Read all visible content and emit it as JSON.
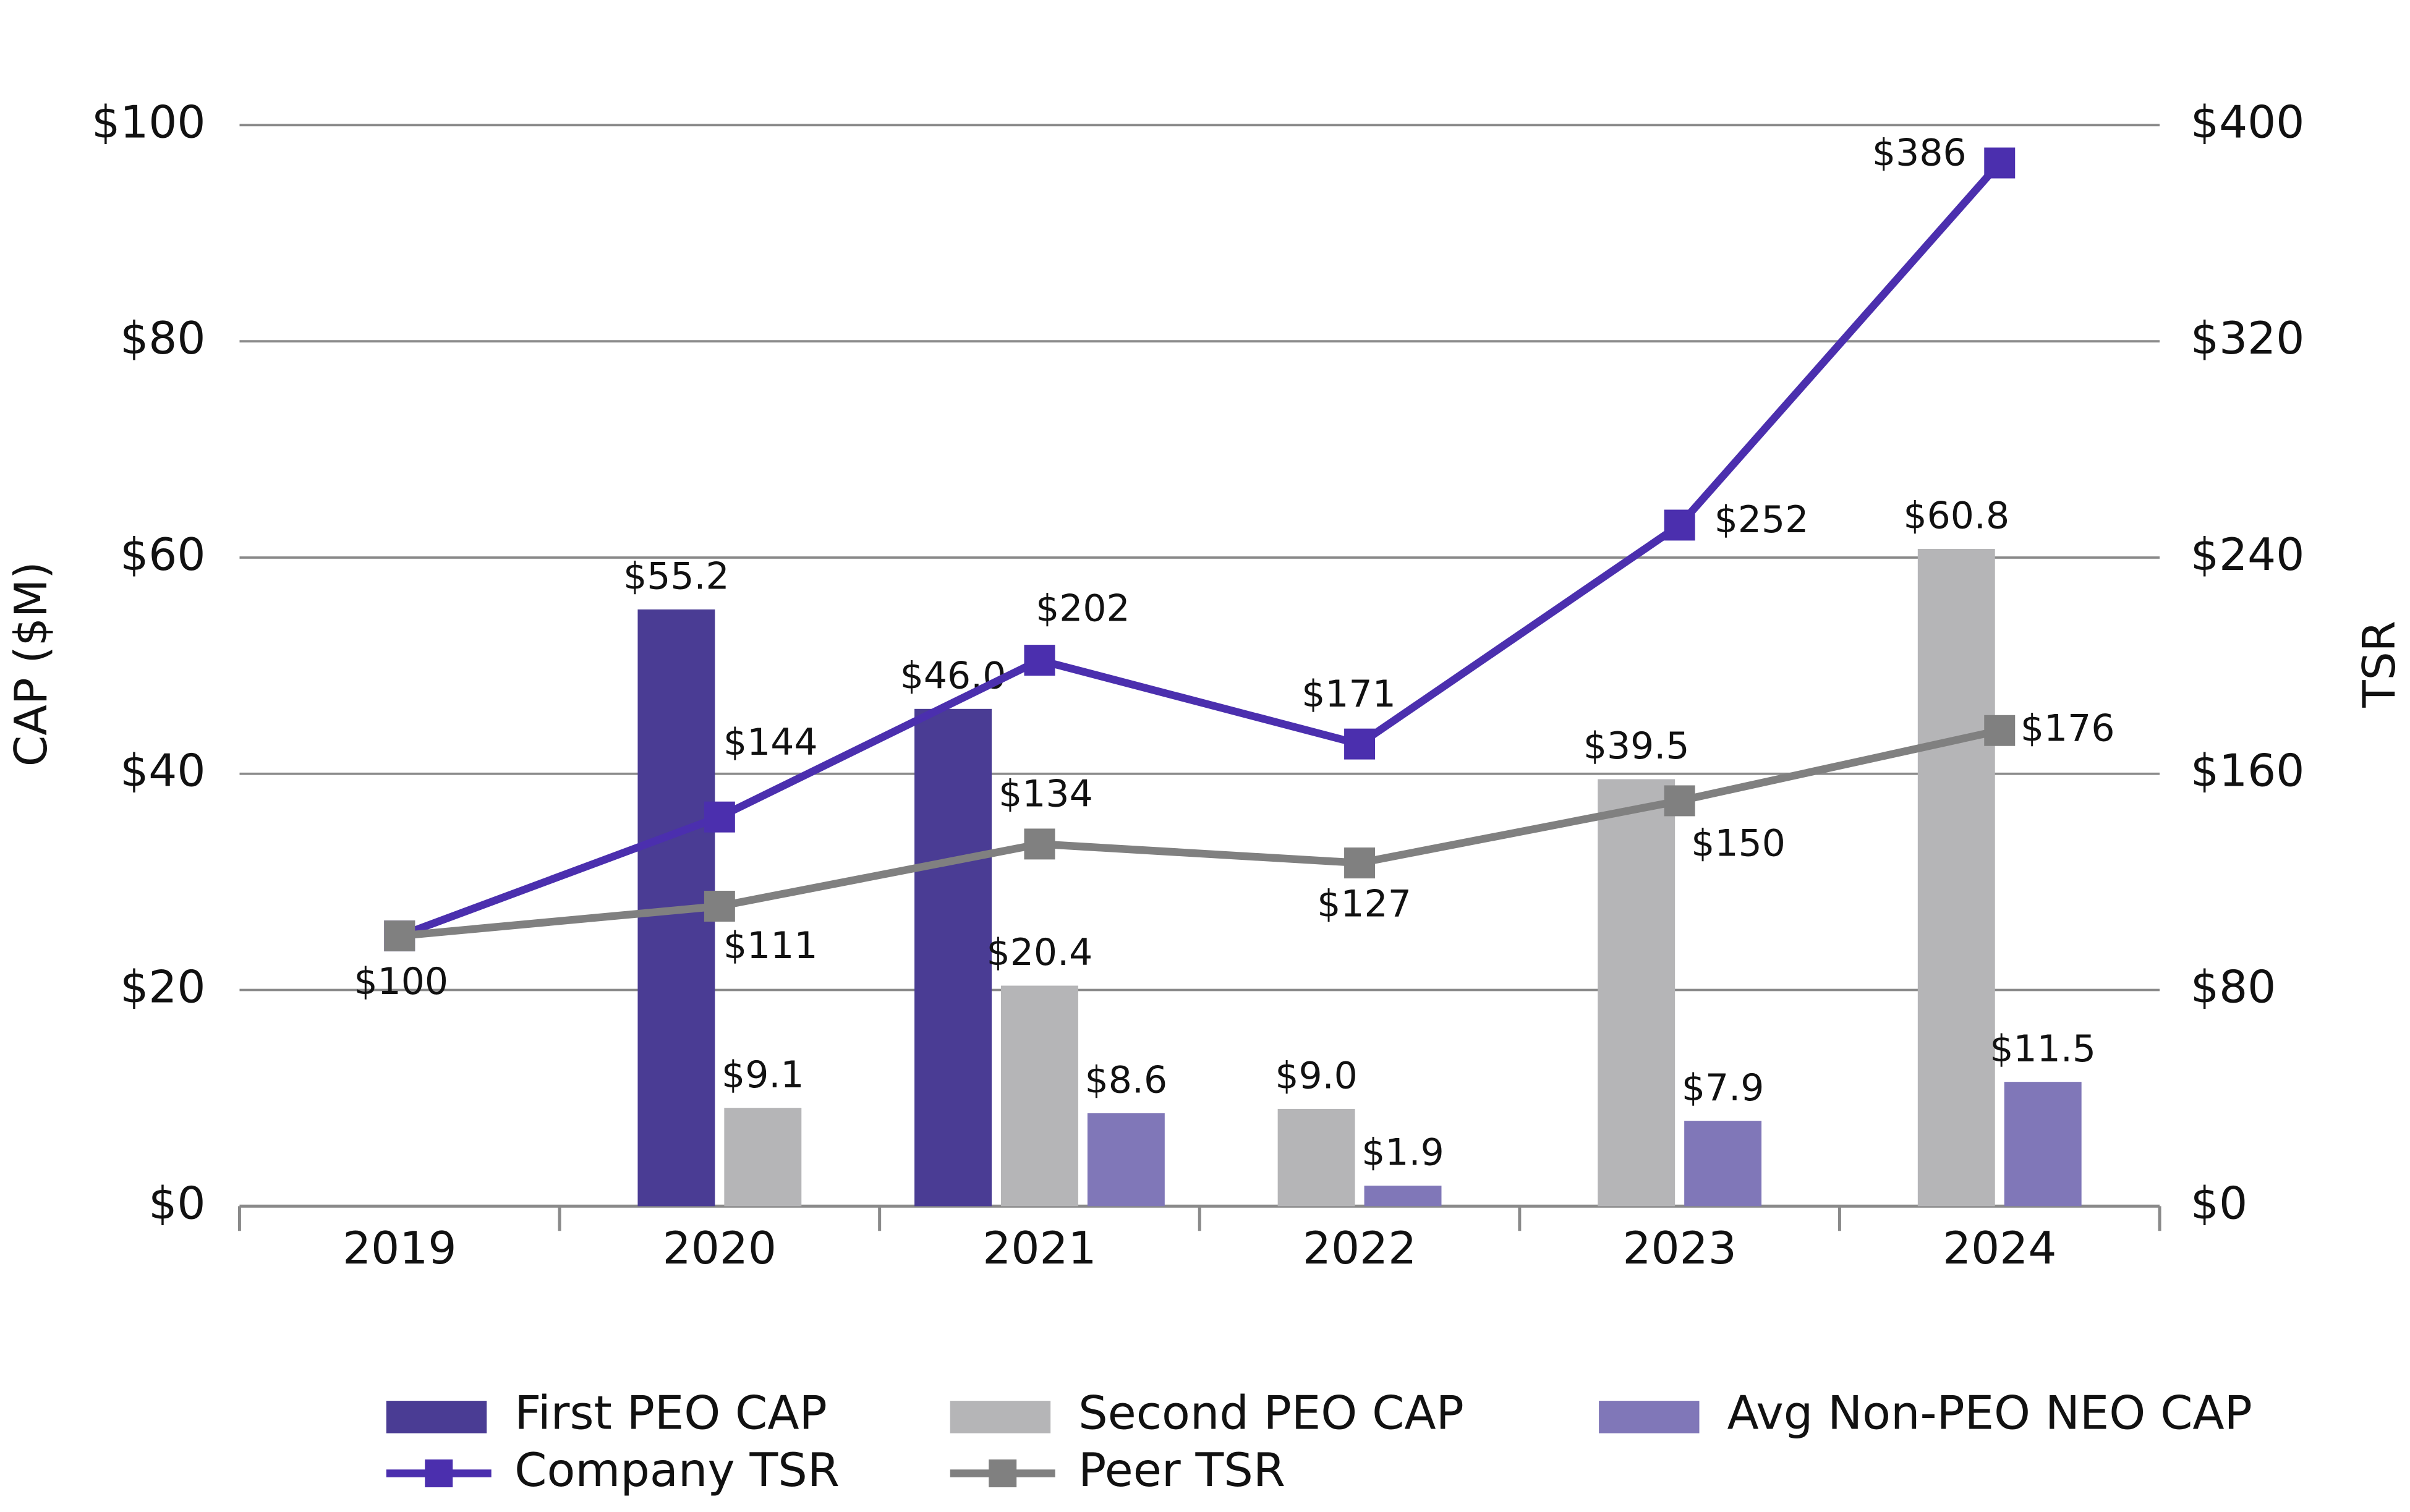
{
  "chart_data": {
    "type": "bar-line",
    "categories": [
      "2019",
      "2020",
      "2021",
      "2022",
      "2023",
      "2024"
    ],
    "y_label": "CAP ($M)",
    "y2_label": "TSR",
    "ylim": [
      0,
      100
    ],
    "yticks": [
      {
        "value": 0,
        "label": "$0"
      },
      {
        "value": 20,
        "label": "$20"
      },
      {
        "value": 40,
        "label": "$40"
      },
      {
        "value": 60,
        "label": "$60"
      },
      {
        "value": 80,
        "label": "$80"
      },
      {
        "value": 100,
        "label": "$100"
      }
    ],
    "y2lim": [
      0,
      400
    ],
    "y2ticks": [
      {
        "value": 0,
        "label": "$0"
      },
      {
        "value": 80,
        "label": "$80"
      },
      {
        "value": 160,
        "label": "$160"
      },
      {
        "value": 240,
        "label": "$240"
      },
      {
        "value": 320,
        "label": "$320"
      },
      {
        "value": 400,
        "label": "$400"
      }
    ],
    "grid": true,
    "series": [
      {
        "name": "First PEO CAP",
        "type": "bar",
        "color": "#4a3c94",
        "values": [
          null,
          55.2,
          46.0,
          null,
          null,
          null
        ],
        "value_labels": [
          null,
          "$55.2",
          "$46.0",
          null,
          null,
          null
        ]
      },
      {
        "name": "Second PEO CAP",
        "type": "bar",
        "color": "#b5b5b7",
        "values": [
          null,
          9.1,
          20.4,
          9.0,
          39.5,
          60.8
        ],
        "value_labels": [
          null,
          "$9.1",
          "$20.4",
          "$9.0",
          "$39.5",
          "$60.8"
        ]
      },
      {
        "name": "Avg Non-PEO NEO CAP",
        "type": "bar",
        "color": "#8077b8",
        "values": [
          null,
          null,
          8.6,
          1.9,
          7.9,
          11.5
        ],
        "value_labels": [
          null,
          null,
          "$8.6",
          "$1.9",
          "$7.9",
          "$11.5"
        ]
      },
      {
        "name": "Company TSR",
        "type": "line",
        "axis": "y2",
        "color": "#4b2fae",
        "values": [
          100,
          144,
          202,
          171,
          252,
          386
        ],
        "value_labels": [
          null,
          "$144",
          "$202",
          "$171",
          "$252",
          "$386"
        ]
      },
      {
        "name": "Peer TSR",
        "type": "line",
        "axis": "y2",
        "color": "#808080",
        "values": [
          100,
          111,
          134,
          127,
          150,
          176
        ],
        "value_labels": [
          "$100",
          "$111",
          "$134",
          "$127",
          "$150",
          "$176"
        ]
      }
    ]
  }
}
